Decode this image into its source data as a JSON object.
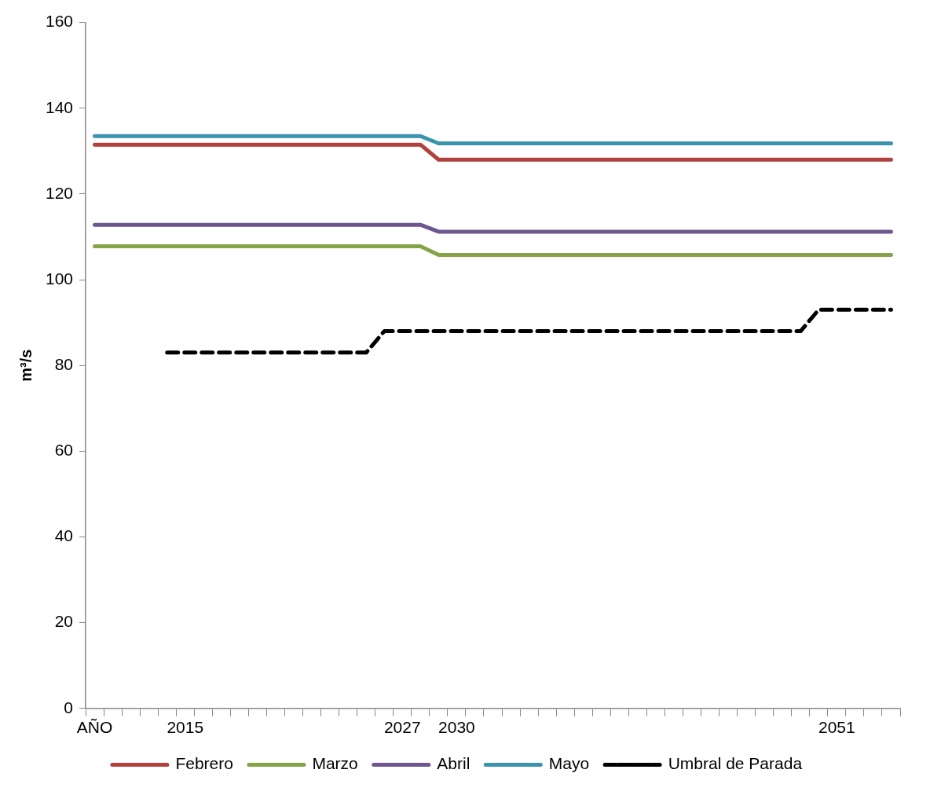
{
  "chart_data": {
    "type": "line",
    "ylabel": "m³/s",
    "categories": [
      "AÑO",
      null,
      null,
      null,
      null,
      "2015",
      null,
      null,
      null,
      null,
      null,
      null,
      null,
      null,
      null,
      null,
      null,
      "2027",
      null,
      null,
      "2030",
      null,
      null,
      null,
      null,
      null,
      null,
      null,
      null,
      null,
      null,
      null,
      null,
      null,
      null,
      null,
      null,
      null,
      null,
      null,
      null,
      "2051",
      null,
      null,
      null
    ],
    "ylim": [
      0,
      160
    ],
    "yticks": [
      0,
      20,
      40,
      60,
      80,
      100,
      120,
      140,
      160
    ],
    "grid": false,
    "legend": "bottom",
    "marker": "none",
    "series": [
      {
        "name": "Febrero",
        "color": "#b0413e",
        "line_style": "solid",
        "values": [
          131.5,
          131.5,
          131.5,
          131.5,
          131.5,
          131.5,
          131.5,
          131.5,
          131.5,
          131.5,
          131.5,
          131.5,
          131.5,
          131.5,
          131.5,
          131.5,
          131.5,
          131.5,
          131.5,
          128,
          128,
          128,
          128,
          128,
          128,
          128,
          128,
          128,
          128,
          128,
          128,
          128,
          128,
          128,
          128,
          128,
          128,
          128,
          128,
          128,
          128,
          128,
          128,
          128,
          128
        ]
      },
      {
        "name": "Marzo",
        "color": "#84a447",
        "line_style": "solid",
        "values": [
          107.8,
          107.8,
          107.8,
          107.8,
          107.8,
          107.8,
          107.8,
          107.8,
          107.8,
          107.8,
          107.8,
          107.8,
          107.8,
          107.8,
          107.8,
          107.8,
          107.8,
          107.8,
          107.8,
          105.8,
          105.8,
          105.8,
          105.8,
          105.8,
          105.8,
          105.8,
          105.8,
          105.8,
          105.8,
          105.8,
          105.8,
          105.8,
          105.8,
          105.8,
          105.8,
          105.8,
          105.8,
          105.8,
          105.8,
          105.8,
          105.8,
          105.8,
          105.8,
          105.8,
          105.8
        ]
      },
      {
        "name": "Abril",
        "color": "#6e568e",
        "line_style": "solid",
        "values": [
          112.8,
          112.8,
          112.8,
          112.8,
          112.8,
          112.8,
          112.8,
          112.8,
          112.8,
          112.8,
          112.8,
          112.8,
          112.8,
          112.8,
          112.8,
          112.8,
          112.8,
          112.8,
          112.8,
          111.2,
          111.2,
          111.2,
          111.2,
          111.2,
          111.2,
          111.2,
          111.2,
          111.2,
          111.2,
          111.2,
          111.2,
          111.2,
          111.2,
          111.2,
          111.2,
          111.2,
          111.2,
          111.2,
          111.2,
          111.2,
          111.2,
          111.2,
          111.2,
          111.2,
          111.2
        ]
      },
      {
        "name": "Mayo",
        "color": "#3c93ac",
        "line_style": "solid",
        "values": [
          133.5,
          133.5,
          133.5,
          133.5,
          133.5,
          133.5,
          133.5,
          133.5,
          133.5,
          133.5,
          133.5,
          133.5,
          133.5,
          133.5,
          133.5,
          133.5,
          133.5,
          133.5,
          133.5,
          131.8,
          131.8,
          131.8,
          131.8,
          131.8,
          131.8,
          131.8,
          131.8,
          131.8,
          131.8,
          131.8,
          131.8,
          131.8,
          131.8,
          131.8,
          131.8,
          131.8,
          131.8,
          131.8,
          131.8,
          131.8,
          131.8,
          131.8,
          131.8,
          131.8,
          131.8
        ]
      },
      {
        "name": "Umbral de Parada",
        "color": "#000000",
        "line_style": "dashed",
        "values": [
          null,
          null,
          null,
          null,
          83,
          83,
          83,
          83,
          83,
          83,
          83,
          83,
          83,
          83,
          83,
          83,
          88,
          88,
          88,
          88,
          88,
          88,
          88,
          88,
          88,
          88,
          88,
          88,
          88,
          88,
          88,
          88,
          88,
          88,
          88,
          88,
          88,
          88,
          88,
          88,
          93,
          93,
          93,
          93,
          93
        ]
      }
    ]
  }
}
